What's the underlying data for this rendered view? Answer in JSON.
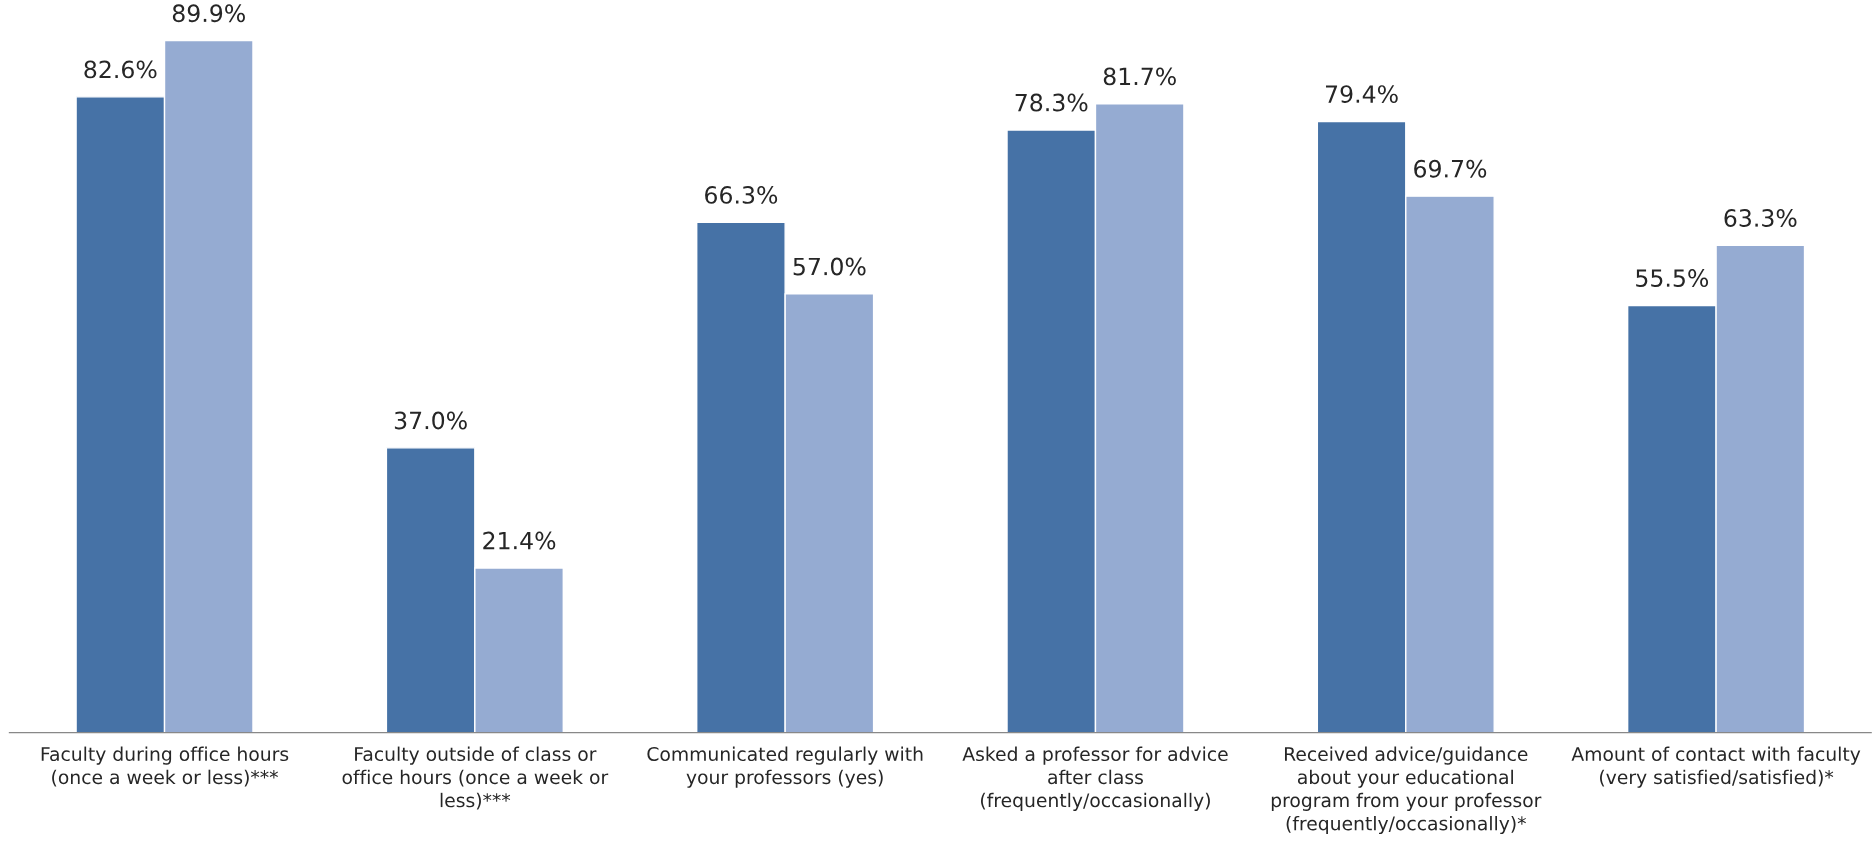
{
  "chart_data": {
    "type": "bar",
    "categories": [
      "Faculty during office hours\n(once a week or less)***",
      "Faculty outside of class or\noffice hours (once a week or\nless)***",
      "Communicated regularly with\nyour professors (yes)",
      "Asked a professor for advice\nafter class\n(frequently/occasionally)",
      "Received advice/guidance\nabout your educational\nprogram from your professor\n(frequently/occasionally)*",
      "Amount of contact with faculty\n(very satisfied/satisfied)*"
    ],
    "series": [
      {
        "color": "#4672a6",
        "values": [
          82.6,
          37.0,
          66.3,
          78.3,
          79.4,
          55.5
        ],
        "value_labels": [
          "82.6%",
          "37.0%",
          "66.3%",
          "78.3%",
          "79.4%",
          "55.5%"
        ]
      },
      {
        "color": "#95abd2",
        "values": [
          89.9,
          21.4,
          57.0,
          81.7,
          69.7,
          63.3
        ],
        "value_labels": [
          "89.9%",
          "21.4%",
          "57.0%",
          "81.7%",
          "69.7%",
          "63.3%"
        ]
      }
    ],
    "tick_labels": "x",
    "grid": false,
    "legend": false
  }
}
